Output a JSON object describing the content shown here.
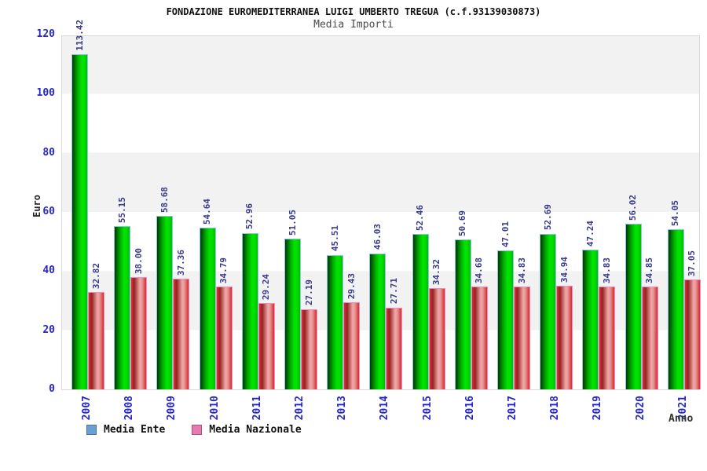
{
  "chart_data": {
    "type": "bar",
    "title": "FONDAZIONE EUROMEDITERRANEA LUIGI UMBERTO TREGUA (c.f.93139030873)",
    "subtitle": "Media Importi",
    "xlabel": "Anno",
    "ylabel": "Euro",
    "ylim": [
      0,
      120
    ],
    "yticks": [
      0,
      20,
      40,
      60,
      80,
      100,
      120
    ],
    "grid": "alternating-horizontal-bands",
    "band_colors": [
      "#ffffff",
      "#f2f2f2"
    ],
    "legend_position": "bottom-left",
    "categories": [
      "2007",
      "2008",
      "2009",
      "2010",
      "2011",
      "2012",
      "2013",
      "2014",
      "2015",
      "2016",
      "2017",
      "2018",
      "2019",
      "2020",
      "2021"
    ],
    "series": [
      {
        "name": "Media Ente",
        "values": [
          113.42,
          55.15,
          58.68,
          54.64,
          52.96,
          51.05,
          45.51,
          46.03,
          52.46,
          50.69,
          47.01,
          52.69,
          47.24,
          56.02,
          54.05
        ],
        "bar_fill": "#00e200",
        "bar_outline": "#8fc3e8",
        "legend_color": "#6b9fd4",
        "legend_border": "#49769e"
      },
      {
        "name": "Media Nazionale",
        "values": [
          32.82,
          38.0,
          37.36,
          34.79,
          29.24,
          27.19,
          29.43,
          27.71,
          34.32,
          34.68,
          34.83,
          34.94,
          34.83,
          34.85,
          37.05
        ],
        "bar_fill": "#f0a8a8",
        "bar_outline": "#f28cc0",
        "legend_color": "#e87ab2",
        "legend_border": "#a85480"
      }
    ],
    "value_label_color": "#39398e",
    "tick_label_color": "#2525cf"
  }
}
